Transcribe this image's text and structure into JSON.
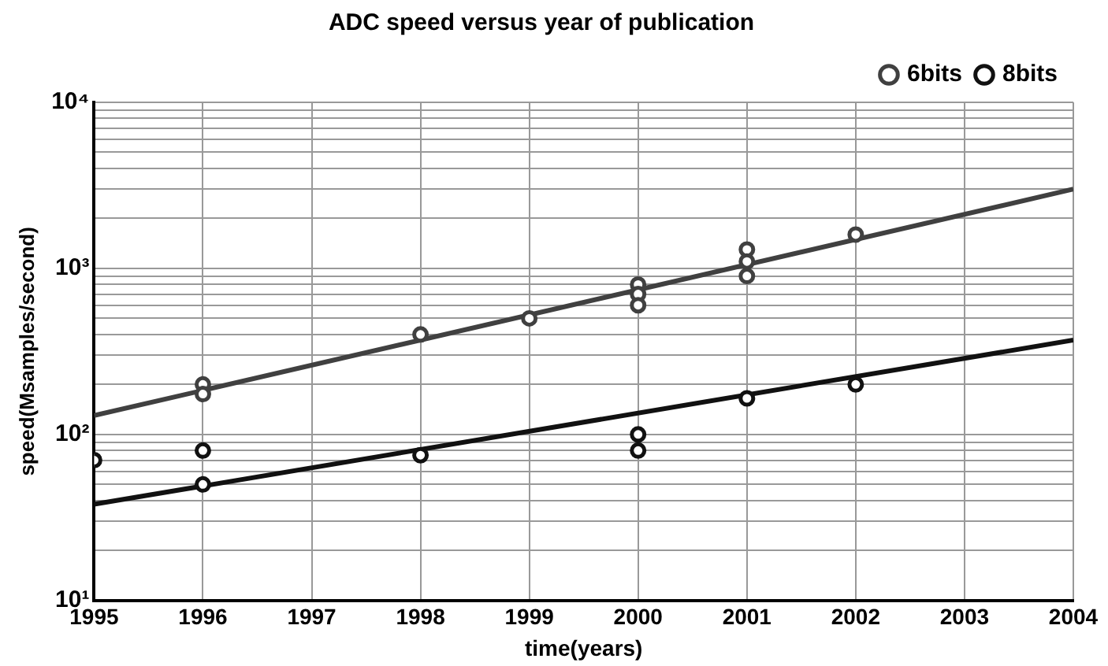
{
  "chart_data": {
    "type": "scatter",
    "title": "ADC speed versus year of publication",
    "xlabel": "time(years)",
    "ylabel": "speed(Msamples/second)",
    "series": [
      {
        "name": "6bits",
        "color": "#404040",
        "x": [
          1996,
          1996,
          1998,
          1999,
          2000,
          2000,
          2000,
          2001,
          2001,
          2001,
          2002
        ],
        "values": [
          200,
          175,
          400,
          500,
          800,
          700,
          600,
          1300,
          1100,
          900,
          1600
        ]
      },
      {
        "name": "8bits",
        "color": "#111111",
        "x": [
          1995,
          1996,
          1996,
          1998,
          2000,
          2000,
          2001,
          2002
        ],
        "values": [
          70,
          80,
          50,
          75,
          100,
          80,
          165,
          200
        ]
      },
      {
        "type": "line",
        "color": "#404040",
        "x": [
          1995,
          2004
        ],
        "values": [
          130,
          3000
        ],
        "marker": "none",
        "line_style": "solid"
      },
      {
        "type": "line",
        "color": "#111111",
        "x": [
          1995,
          2004
        ],
        "values": [
          38,
          370
        ],
        "marker": "none",
        "line_style": "solid"
      }
    ],
    "xlim": [
      1995,
      2004
    ],
    "xticks": [
      1995,
      1996,
      1997,
      1998,
      1999,
      2000,
      2001,
      2002,
      2003,
      2004
    ],
    "ylim": [
      10,
      10000
    ],
    "log": "y",
    "yticks": [
      {
        "value": 10,
        "label": "10¹"
      },
      {
        "value": 20,
        "label": null
      },
      {
        "value": 30,
        "label": null
      },
      {
        "value": 40,
        "label": null
      },
      {
        "value": 50,
        "label": null
      },
      {
        "value": 60,
        "label": null
      },
      {
        "value": 70,
        "label": null
      },
      {
        "value": 80,
        "label": null
      },
      {
        "value": 90,
        "label": null
      },
      {
        "value": 100,
        "label": "10²"
      },
      {
        "value": 200,
        "label": null
      },
      {
        "value": 300,
        "label": null
      },
      {
        "value": 400,
        "label": null
      },
      {
        "value": 500,
        "label": null
      },
      {
        "value": 600,
        "label": null
      },
      {
        "value": 700,
        "label": null
      },
      {
        "value": 800,
        "label": null
      },
      {
        "value": 900,
        "label": null
      },
      {
        "value": 1000,
        "label": "10³"
      },
      {
        "value": 2000,
        "label": null
      },
      {
        "value": 3000,
        "label": null
      },
      {
        "value": 4000,
        "label": null
      },
      {
        "value": 5000,
        "label": null
      },
      {
        "value": 6000,
        "label": null
      },
      {
        "value": 7000,
        "label": null
      },
      {
        "value": 8000,
        "label": null
      },
      {
        "value": 9000,
        "label": null
      },
      {
        "value": 10000,
        "label": "10⁴"
      }
    ],
    "grid": true,
    "legend": "top right",
    "marker": "circle"
  }
}
